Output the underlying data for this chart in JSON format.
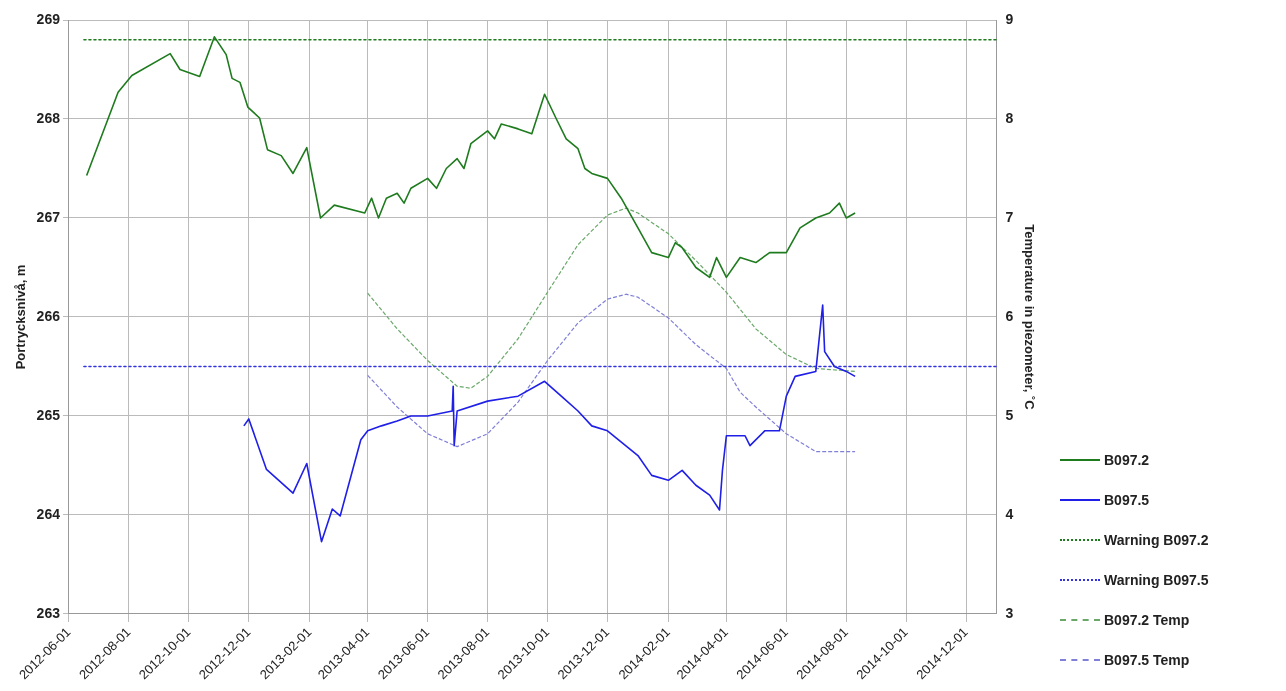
{
  "chart_data": {
    "type": "line",
    "ylabel": "Portrycksnivå, m",
    "y2label": "Temperature in piezometer, ˚C",
    "xlim": [
      "2012-06-01",
      "2015-01-01"
    ],
    "xticks": [
      "2012-06-01",
      "2012-08-01",
      "2012-10-01",
      "2012-12-01",
      "2013-02-01",
      "2013-04-01",
      "2013-06-01",
      "2013-08-01",
      "2013-10-01",
      "2013-12-01",
      "2014-02-01",
      "2014-04-01",
      "2014-06-01",
      "2014-08-01",
      "2014-10-01",
      "2014-12-01"
    ],
    "ylim": [
      263,
      269
    ],
    "yticks": [
      263,
      264,
      265,
      266,
      267,
      268,
      269
    ],
    "y2lim": [
      3,
      9
    ],
    "y2ticks": [
      3,
      4,
      5,
      6,
      7,
      8,
      9
    ],
    "grid": true,
    "legend": "right",
    "marker": "none",
    "series": [
      {
        "name": "B097.2",
        "color": "#1e7b1e",
        "line_style": "solid",
        "x": [
          "2012-06-19",
          "2012-07-21",
          "2012-08-04",
          "2012-09-12",
          "2012-09-22",
          "2012-10-12",
          "2012-10-27",
          "2012-11-08",
          "2012-11-14",
          "2012-11-22",
          "2012-11-30",
          "2012-12-12",
          "2012-12-20",
          "2013-01-03",
          "2013-01-15",
          "2013-01-29",
          "2013-02-12",
          "2013-02-26",
          "2013-03-29",
          "2013-04-05",
          "2013-04-12",
          "2013-04-20",
          "2013-05-01",
          "2013-05-08",
          "2013-05-15",
          "2013-06-01",
          "2013-06-10",
          "2013-06-20",
          "2013-07-01",
          "2013-07-08",
          "2013-07-15",
          "2013-08-01",
          "2013-08-08",
          "2013-08-15",
          "2013-09-01",
          "2013-09-15",
          "2013-09-28",
          "2013-10-10",
          "2013-10-20",
          "2013-11-01",
          "2013-11-08",
          "2013-11-15",
          "2013-12-01",
          "2013-12-15",
          "2014-01-01",
          "2014-01-15",
          "2014-02-01",
          "2014-02-08",
          "2014-02-15",
          "2014-03-01",
          "2014-03-15",
          "2014-03-22",
          "2014-04-01",
          "2014-04-15",
          "2014-05-01",
          "2014-05-15",
          "2014-06-01",
          "2014-06-15",
          "2014-07-01",
          "2014-07-15",
          "2014-07-25",
          "2014-08-01",
          "2014-08-10"
        ],
        "values": [
          267.43,
          268.27,
          268.44,
          268.66,
          268.5,
          268.43,
          268.83,
          268.65,
          268.41,
          268.37,
          268.12,
          268.01,
          267.69,
          267.63,
          267.45,
          267.71,
          267.0,
          267.13,
          267.05,
          267.2,
          267.0,
          267.2,
          267.25,
          267.15,
          267.3,
          267.4,
          267.3,
          267.5,
          267.6,
          267.5,
          267.75,
          267.88,
          267.8,
          267.95,
          267.9,
          267.85,
          268.25,
          268.0,
          267.8,
          267.7,
          267.5,
          267.45,
          267.4,
          267.2,
          266.9,
          266.65,
          266.6,
          266.75,
          266.7,
          266.5,
          266.4,
          266.6,
          266.4,
          266.6,
          266.55,
          266.65,
          266.65,
          266.9,
          267.0,
          267.05,
          267.15,
          267.0,
          267.05
        ]
      },
      {
        "name": "B097.5",
        "color": "#1f1fe8",
        "line_style": "solid",
        "x": [
          "2012-11-26",
          "2012-12-01",
          "2012-12-19",
          "2013-01-15",
          "2013-01-29",
          "2013-02-13",
          "2013-02-24",
          "2013-03-04",
          "2013-03-25",
          "2013-04-01",
          "2013-04-15",
          "2013-05-01",
          "2013-05-15",
          "2013-06-01",
          "2013-06-26",
          "2013-06-27",
          "2013-06-28",
          "2013-07-01",
          "2013-08-01",
          "2013-09-01",
          "2013-09-28",
          "2013-10-15",
          "2013-11-01",
          "2013-11-15",
          "2013-12-01",
          "2014-01-01",
          "2014-01-15",
          "2014-02-01",
          "2014-02-15",
          "2014-03-01",
          "2014-03-15",
          "2014-03-25",
          "2014-03-28",
          "2014-04-01",
          "2014-04-20",
          "2014-04-25",
          "2014-05-10",
          "2014-05-25",
          "2014-06-01",
          "2014-06-10",
          "2014-07-01",
          "2014-07-08",
          "2014-07-10",
          "2014-07-20",
          "2014-08-01",
          "2014-08-10"
        ],
        "values": [
          264.9,
          264.97,
          264.46,
          264.22,
          264.52,
          263.73,
          264.06,
          263.99,
          264.76,
          264.85,
          264.9,
          264.95,
          265.0,
          265.0,
          265.05,
          265.3,
          264.7,
          265.05,
          265.15,
          265.2,
          265.35,
          265.2,
          265.05,
          264.9,
          264.85,
          264.6,
          264.4,
          264.35,
          264.45,
          264.3,
          264.2,
          264.05,
          264.45,
          264.8,
          264.8,
          264.7,
          264.85,
          264.85,
          265.2,
          265.4,
          265.45,
          266.12,
          265.65,
          265.5,
          265.45,
          265.4
        ]
      },
      {
        "name": "B097.2 Temp",
        "color": "#6aa86a",
        "line_style": "dashed",
        "axis": "y2",
        "x": [
          "2013-04-01",
          "2013-05-01",
          "2013-06-01",
          "2013-07-01",
          "2013-07-15",
          "2013-08-01",
          "2013-09-01",
          "2013-10-01",
          "2013-11-01",
          "2013-12-01",
          "2013-12-20",
          "2014-01-01",
          "2014-02-01",
          "2014-03-01",
          "2014-04-01",
          "2014-05-01",
          "2014-06-01",
          "2014-07-01",
          "2014-08-10"
        ],
        "values": [
          6.24,
          5.88,
          5.56,
          5.3,
          5.28,
          5.4,
          5.78,
          6.25,
          6.73,
          7.03,
          7.1,
          7.05,
          6.84,
          6.57,
          6.25,
          5.88,
          5.62,
          5.48,
          5.45
        ]
      },
      {
        "name": "B097.5 Temp",
        "color": "#8080d8",
        "line_style": "dashed",
        "axis": "y2",
        "x": [
          "2013-04-01",
          "2013-05-01",
          "2013-06-01",
          "2013-07-01",
          "2013-08-01",
          "2013-09-01",
          "2013-10-01",
          "2013-11-01",
          "2013-12-01",
          "2013-12-20",
          "2014-01-01",
          "2014-02-01",
          "2014-03-01",
          "2014-04-01",
          "2014-04-15",
          "2014-05-01",
          "2014-06-01",
          "2014-07-01",
          "2014-08-10"
        ],
        "values": [
          5.41,
          5.09,
          4.82,
          4.69,
          4.82,
          5.14,
          5.56,
          5.94,
          6.18,
          6.23,
          6.2,
          5.99,
          5.72,
          5.48,
          5.24,
          5.09,
          4.82,
          4.64,
          4.64
        ]
      }
    ],
    "ref_lines": [
      {
        "axis": "y",
        "value": 268.8,
        "label": "Warning B097.2",
        "color": "#1e7b1e",
        "line_style": "dotted"
      },
      {
        "axis": "y",
        "value": 265.5,
        "label": "Warning B097.5",
        "color": "#3333dd",
        "line_style": "dotted"
      }
    ]
  }
}
